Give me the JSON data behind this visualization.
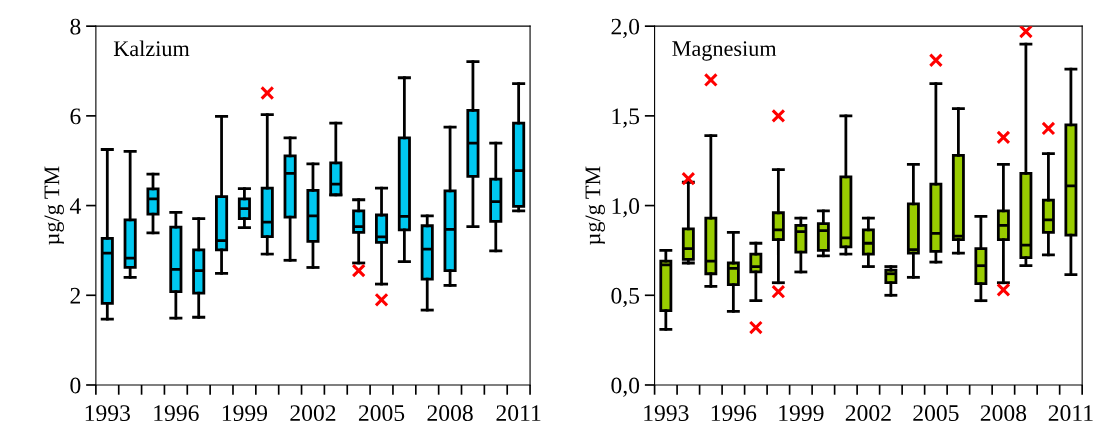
{
  "chart_data": [
    {
      "type": "box",
      "title": "Kalzium",
      "ylabel": "µg/g TM",
      "categories": [
        "1993",
        null,
        null,
        "1996",
        null,
        null,
        "1999",
        null,
        null,
        "2002",
        null,
        null,
        "2005",
        null,
        null,
        "2008",
        null,
        null,
        "2011"
      ],
      "ylim": [
        0,
        8
      ],
      "yticks": [
        0,
        2,
        4,
        6,
        8
      ],
      "grid": false,
      "legend": false,
      "series": [
        {
          "color": "#00c8f0",
          "boxes": [
            {
              "low": 1.47,
              "q1": 1.82,
              "median": 2.94,
              "q3": 3.27,
              "high": 5.25
            },
            {
              "low": 2.4,
              "q1": 2.62,
              "median": 2.83,
              "q3": 3.68,
              "high": 5.21
            },
            {
              "low": 3.39,
              "q1": 3.81,
              "median": 4.15,
              "q3": 4.37,
              "high": 4.7
            },
            {
              "low": 1.49,
              "q1": 2.08,
              "median": 2.58,
              "q3": 3.52,
              "high": 3.85
            },
            {
              "low": 1.51,
              "q1": 2.05,
              "median": 2.55,
              "q3": 3.01,
              "high": 3.71
            },
            {
              "low": 2.49,
              "q1": 3.01,
              "median": 3.22,
              "q3": 4.2,
              "high": 5.99
            },
            {
              "low": 3.51,
              "q1": 3.71,
              "median": 3.93,
              "q3": 4.15,
              "high": 4.38
            },
            {
              "low": 2.92,
              "q1": 3.31,
              "median": 3.63,
              "q3": 4.39,
              "high": 6.03,
              "outliers": [
                6.51
              ]
            },
            {
              "low": 2.78,
              "q1": 3.74,
              "median": 4.72,
              "q3": 5.11,
              "high": 5.51
            },
            {
              "low": 2.62,
              "q1": 3.2,
              "median": 3.77,
              "q3": 4.34,
              "high": 4.93
            },
            {
              "low": 4.24,
              "q1": 4.24,
              "median": 4.48,
              "q3": 4.95,
              "high": 5.84
            },
            {
              "low": 2.72,
              "q1": 3.4,
              "median": 3.53,
              "q3": 3.88,
              "high": 4.13,
              "outliers": [
                2.55
              ]
            },
            {
              "low": 2.25,
              "q1": 3.18,
              "median": 3.3,
              "q3": 3.79,
              "high": 4.39,
              "outliers": [
                1.9
              ]
            },
            {
              "low": 2.75,
              "q1": 3.46,
              "median": 3.76,
              "q3": 5.51,
              "high": 6.85
            },
            {
              "low": 1.67,
              "q1": 2.36,
              "median": 3.03,
              "q3": 3.55,
              "high": 3.77
            },
            {
              "low": 2.22,
              "q1": 2.55,
              "median": 3.47,
              "q3": 4.33,
              "high": 5.75
            },
            {
              "low": 3.53,
              "q1": 4.65,
              "median": 5.39,
              "q3": 6.12,
              "high": 7.21
            },
            {
              "low": 2.99,
              "q1": 3.65,
              "median": 4.09,
              "q3": 4.59,
              "high": 5.39
            },
            {
              "low": 3.88,
              "q1": 3.98,
              "median": 4.78,
              "q3": 5.84,
              "high": 6.72
            }
          ]
        }
      ]
    },
    {
      "type": "box",
      "title": "Magnesium",
      "ylabel": "µg/g TM",
      "categories": [
        "1993",
        null,
        null,
        "1996",
        null,
        null,
        "1999",
        null,
        null,
        "2002",
        null,
        null,
        "2005",
        null,
        null,
        "2008",
        null,
        null,
        "2011"
      ],
      "ylim": [
        0,
        2
      ],
      "yticks": [
        {
          "value": 0,
          "label": "0,0"
        },
        {
          "value": 0.5,
          "label": "0,5"
        },
        {
          "value": 1,
          "label": "1,0"
        },
        {
          "value": 1.5,
          "label": "1,5"
        },
        {
          "value": 2,
          "label": "2,0"
        }
      ],
      "grid": false,
      "legend": false,
      "series": [
        {
          "color": "#99cc00",
          "boxes": [
            {
              "low": 0.31,
              "q1": 0.415,
              "median": 0.67,
              "q3": 0.69,
              "high": 0.75
            },
            {
              "low": 0.68,
              "q1": 0.7,
              "median": 0.76,
              "q3": 0.87,
              "high": 1.13,
              "outliers": [
                1.15
              ]
            },
            {
              "low": 0.55,
              "q1": 0.62,
              "median": 0.69,
              "q3": 0.93,
              "high": 1.39,
              "outliers": [
                1.7
              ]
            },
            {
              "low": 0.41,
              "q1": 0.56,
              "median": 0.65,
              "q3": 0.68,
              "high": 0.85
            },
            {
              "low": 0.47,
              "q1": 0.63,
              "median": 0.66,
              "q3": 0.73,
              "high": 0.79,
              "outliers": [
                0.32
              ]
            },
            {
              "low": 0.57,
              "q1": 0.81,
              "median": 0.865,
              "q3": 0.96,
              "high": 1.2,
              "outliers": [
                1.5,
                0.52
              ]
            },
            {
              "low": 0.63,
              "q1": 0.74,
              "median": 0.855,
              "q3": 0.89,
              "high": 0.93
            },
            {
              "low": 0.72,
              "q1": 0.75,
              "median": 0.86,
              "q3": 0.9,
              "high": 0.97
            },
            {
              "low": 0.73,
              "q1": 0.77,
              "median": 0.82,
              "q3": 1.16,
              "high": 1.5
            },
            {
              "low": 0.66,
              "q1": 0.73,
              "median": 0.79,
              "q3": 0.865,
              "high": 0.93
            },
            {
              "low": 0.5,
              "q1": 0.57,
              "median": 0.62,
              "q3": 0.64,
              "high": 0.66
            },
            {
              "low": 0.6,
              "q1": 0.735,
              "median": 0.755,
              "q3": 1.01,
              "high": 1.23
            },
            {
              "low": 0.685,
              "q1": 0.745,
              "median": 0.845,
              "q3": 1.12,
              "high": 1.68,
              "outliers": [
                1.81
              ]
            },
            {
              "low": 0.735,
              "q1": 0.81,
              "median": 0.83,
              "q3": 1.28,
              "high": 1.54
            },
            {
              "low": 0.47,
              "q1": 0.565,
              "median": 0.665,
              "q3": 0.76,
              "high": 0.94
            },
            {
              "low": 0.57,
              "q1": 0.81,
              "median": 0.89,
              "q3": 0.97,
              "high": 1.23,
              "outliers": [
                1.38,
                0.53
              ]
            },
            {
              "low": 0.665,
              "q1": 0.71,
              "median": 0.78,
              "q3": 1.18,
              "high": 1.9,
              "outliers": [
                1.97
              ]
            },
            {
              "low": 0.725,
              "q1": 0.85,
              "median": 0.92,
              "q3": 1.03,
              "high": 1.29,
              "outliers": [
                1.43
              ]
            },
            {
              "low": 0.615,
              "q1": 0.835,
              "median": 1.11,
              "q3": 1.45,
              "high": 1.76
            }
          ]
        }
      ]
    }
  ]
}
